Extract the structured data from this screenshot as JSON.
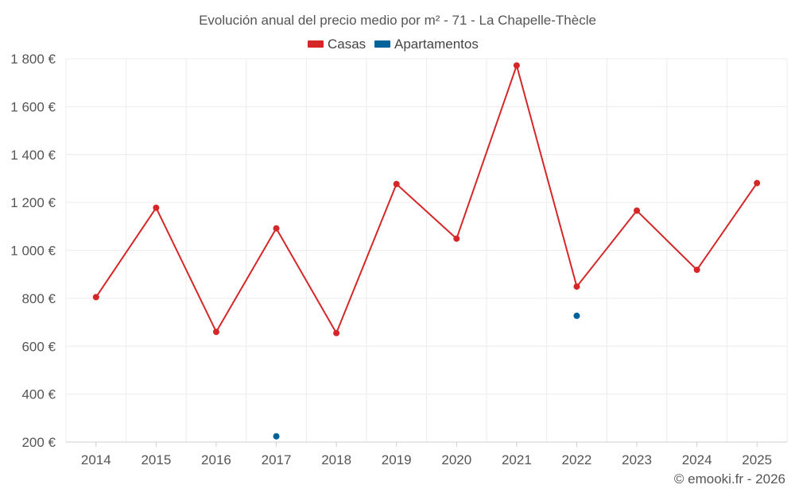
{
  "chart_data": {
    "type": "line",
    "title": "Evolución anual del precio medio por m² - 71 - La Chapelle-Thècle",
    "categories": [
      "2014",
      "2015",
      "2016",
      "2017",
      "2018",
      "2019",
      "2020",
      "2021",
      "2022",
      "2023",
      "2024",
      "2025"
    ],
    "series": [
      {
        "name": "Casas",
        "color": "#d62728",
        "values": [
          805,
          1178,
          660,
          1092,
          655,
          1277,
          1049,
          1772,
          849,
          1166,
          919,
          1281
        ]
      },
      {
        "name": "Apartamentos",
        "color": "#00629b",
        "values": [
          null,
          null,
          null,
          224,
          null,
          null,
          null,
          null,
          727,
          null,
          null,
          null
        ]
      }
    ],
    "y_ticks": [
      "200 €",
      "400 €",
      "600 €",
      "800 €",
      "1 000 €",
      "1 200 €",
      "1 400 €",
      "1 600 €",
      "1 800 €"
    ],
    "ylim": [
      200,
      1800
    ],
    "xlabel": "",
    "ylabel": "",
    "legend_position": "top-center",
    "grid": true
  },
  "credit": "© emooki.fr - 2026"
}
